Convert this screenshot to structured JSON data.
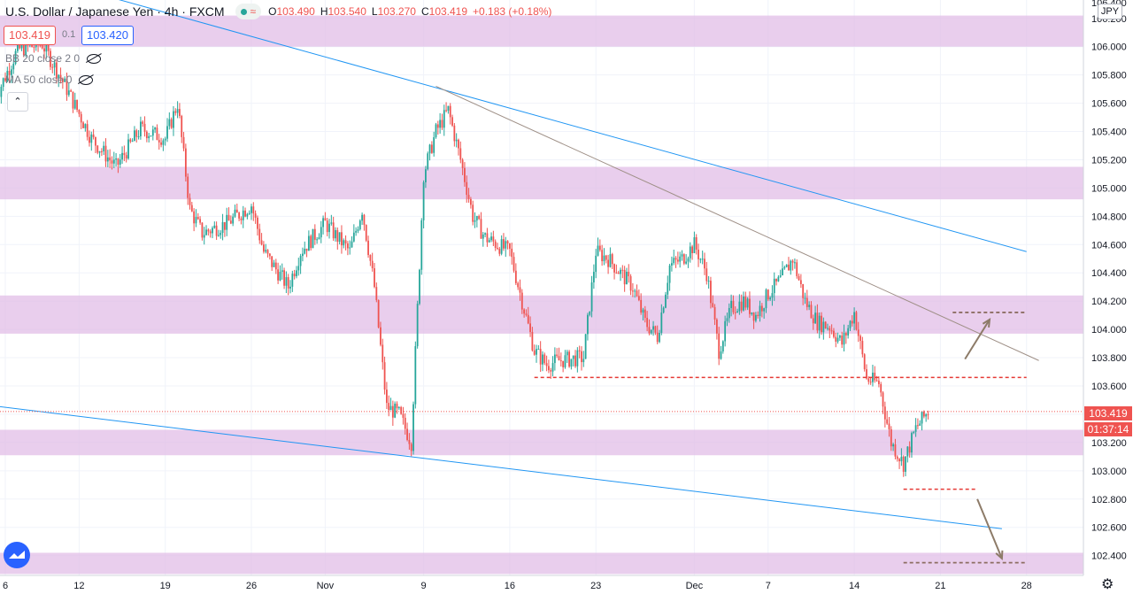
{
  "header": {
    "symbol": "U.S. Dollar / Japanese Yen",
    "interval": "4h",
    "exchange": "FXCM",
    "wave_glyph": "≈",
    "ohlc": {
      "o_label": "O",
      "o": "103.490",
      "h_label": "H",
      "h": "103.540",
      "l_label": "L",
      "l": "103.270",
      "c_label": "C",
      "c": "103.419",
      "change": "+0.183 (+0.18%)"
    }
  },
  "trade_box": {
    "sell": "103.419",
    "spread": "0.1",
    "buy": "103.420"
  },
  "indicators": [
    {
      "label": "BB 20 close 2 0"
    },
    {
      "label": "MA 50 close 0"
    }
  ],
  "collapse_glyph": "⌃",
  "currency_button": "JPY",
  "axis_top_partial": "106.400",
  "price_tag": {
    "price": "103.419",
    "countdown": "01:37:14"
  },
  "settings_icon_glyph": "⚙",
  "colors": {
    "up": "#26a69a",
    "down": "#ef5350",
    "zone": "#e1bee7",
    "trendline_blue": "#2196f3",
    "trendline_gray": "#9e8f86",
    "arrow": "#8d7b68",
    "support_red": "#e53935",
    "dashed_brown": "#8d6e63"
  },
  "chart_data": {
    "type": "candlestick",
    "title": "U.S. Dollar / Japanese Yen, 4h, FXCM",
    "y_ticks": [
      "106.200",
      "106.000",
      "105.800",
      "105.600",
      "105.400",
      "105.200",
      "105.000",
      "104.800",
      "104.600",
      "104.400",
      "104.200",
      "104.000",
      "103.800",
      "103.600",
      "103.400",
      "103.200",
      "103.000",
      "102.800",
      "102.600",
      "102.400"
    ],
    "x_ticks": [
      "6",
      "12",
      "19",
      "26",
      "Nov",
      "9",
      "16",
      "23",
      "Dec",
      "7",
      "14",
      "21",
      "28"
    ],
    "ylim": [
      102.26,
      106.33
    ],
    "zones": [
      {
        "from": 106.0,
        "to": 106.22
      },
      {
        "from": 104.92,
        "to": 105.15
      },
      {
        "from": 103.97,
        "to": 104.24
      },
      {
        "from": 103.11,
        "to": 103.29
      },
      {
        "from": 102.27,
        "to": 102.42
      }
    ],
    "trendlines": [
      {
        "color": "blue",
        "from": [
          "Oct 5",
          106.58
        ],
        "to": [
          "Dec 28",
          104.55
        ]
      },
      {
        "color": "blue",
        "from": [
          "Oct 4",
          103.47
        ],
        "to": [
          "Dec 26",
          102.59
        ]
      },
      {
        "color": "gray",
        "from": [
          "Nov 10",
          105.72
        ],
        "to": [
          "Dec 29",
          103.78
        ]
      }
    ],
    "levels": [
      {
        "style": "red-dashed",
        "price": 103.66,
        "from": "Nov 18",
        "to": "Dec 28"
      },
      {
        "style": "red-dashed",
        "price": 102.87,
        "from": "Dec 18",
        "to": "Dec 24"
      },
      {
        "style": "brown-dashed",
        "price": 104.12,
        "from": "Dec 22",
        "to": "Dec 28"
      },
      {
        "style": "brown-dashed",
        "price": 102.35,
        "from": "Dec 18",
        "to": "Dec 28"
      }
    ],
    "arrows": [
      {
        "direction": "up",
        "from": [
          "Dec 23",
          103.79
        ],
        "to": [
          "Dec 25",
          104.07
        ]
      },
      {
        "direction": "down",
        "from": [
          "Dec 24",
          102.8
        ],
        "to": [
          "Dec 26",
          102.38
        ]
      }
    ],
    "current_price": 103.419,
    "close_path": [
      [
        "Oct 5",
        105.6
      ],
      [
        "Oct 7",
        105.98
      ],
      [
        "Oct 9",
        106.02
      ],
      [
        "Oct 11",
        105.7
      ],
      [
        "Oct 13",
        105.35
      ],
      [
        "Oct 15",
        105.15
      ],
      [
        "Oct 17",
        105.42
      ],
      [
        "Oct 19",
        105.35
      ],
      [
        "Oct 20",
        105.6
      ],
      [
        "Oct 21",
        104.85
      ],
      [
        "Oct 22",
        104.68
      ],
      [
        "Oct 24",
        104.75
      ],
      [
        "Oct 26",
        104.88
      ],
      [
        "Oct 27",
        104.55
      ],
      [
        "Oct 29",
        104.3
      ],
      [
        "Oct 30",
        104.55
      ],
      [
        "Oct 31",
        104.65
      ],
      [
        "Nov 1",
        104.75
      ],
      [
        "Nov 3",
        104.55
      ],
      [
        "Nov 4",
        104.85
      ],
      [
        "Nov 5",
        104.3
      ],
      [
        "Nov 6",
        103.45
      ],
      [
        "Nov 7",
        103.4
      ],
      [
        "Nov 8",
        103.2
      ],
      [
        "Nov 9",
        105.1
      ],
      [
        "Nov 10",
        105.4
      ],
      [
        "Nov 11",
        105.55
      ],
      [
        "Nov 12",
        105.2
      ],
      [
        "Nov 13",
        104.8
      ],
      [
        "Nov 14",
        104.65
      ],
      [
        "Nov 16",
        104.55
      ],
      [
        "Nov 17",
        104.2
      ],
      [
        "Nov 18",
        103.85
      ],
      [
        "Nov 19",
        103.75
      ],
      [
        "Nov 20",
        103.78
      ],
      [
        "Nov 22",
        103.8
      ],
      [
        "Nov 23",
        104.55
      ],
      [
        "Nov 24",
        104.5
      ],
      [
        "Nov 25",
        104.4
      ],
      [
        "Nov 26",
        104.3
      ],
      [
        "Nov 27",
        104.05
      ],
      [
        "Nov 28",
        103.95
      ],
      [
        "Nov 29",
        104.45
      ],
      [
        "Nov 30",
        104.5
      ],
      [
        "Dec 1",
        104.6
      ],
      [
        "Dec 2",
        104.4
      ],
      [
        "Dec 3",
        103.85
      ],
      [
        "Dec 4",
        104.15
      ],
      [
        "Dec 5",
        104.2
      ],
      [
        "Dec 6",
        104.1
      ],
      [
        "Dec 7",
        104.25
      ],
      [
        "Dec 8",
        104.35
      ],
      [
        "Dec 9",
        104.5
      ],
      [
        "Dec 10",
        104.2
      ],
      [
        "Dec 11",
        104.05
      ],
      [
        "Dec 12",
        104.02
      ],
      [
        "Dec 13",
        103.9
      ],
      [
        "Dec 14",
        104.12
      ],
      [
        "Dec 15",
        103.65
      ],
      [
        "Dec 16",
        103.62
      ],
      [
        "Dec 17",
        103.2
      ],
      [
        "Dec 18",
        103.05
      ],
      [
        "Dec 19",
        103.3
      ],
      [
        "Dec 20",
        103.42
      ]
    ]
  }
}
